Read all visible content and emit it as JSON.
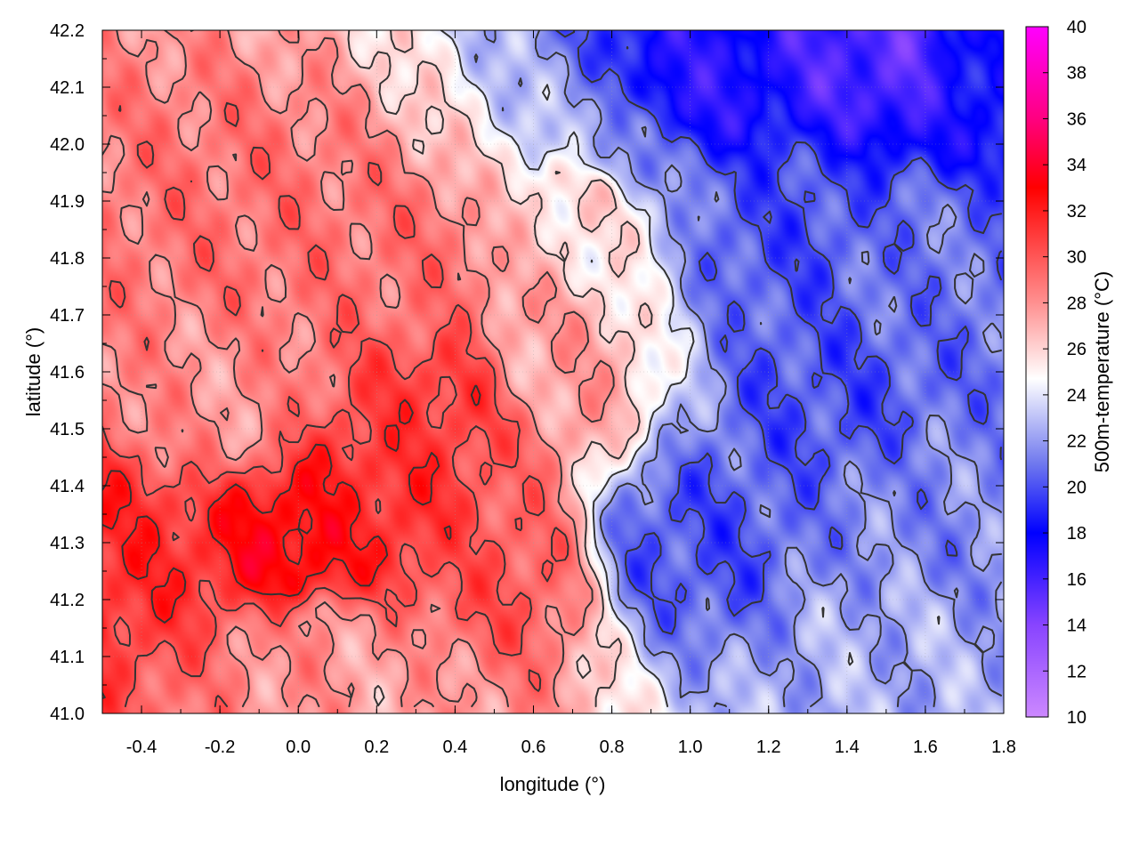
{
  "chart_data": {
    "type": "heatmap",
    "title": "",
    "xlabel": "longitude (°)",
    "ylabel": "latitude (°)",
    "colorbar_label": "500m-temperature (°C)",
    "xlim": [
      -0.5,
      1.8
    ],
    "ylim": [
      41.0,
      42.2
    ],
    "x_ticks": [
      -0.4,
      -0.2,
      0.0,
      0.2,
      0.4,
      0.6,
      0.8,
      1.0,
      1.2,
      1.4,
      1.6,
      1.8
    ],
    "x_tick_labels": [
      "-0.4",
      "-0.2",
      "0.0",
      "0.2",
      "0.4",
      "0.6",
      "0.8",
      "1.0",
      "1.2",
      "1.4",
      "1.6",
      "1.8"
    ],
    "y_ticks": [
      41.0,
      41.1,
      41.2,
      41.3,
      41.4,
      41.5,
      41.6,
      41.7,
      41.8,
      41.9,
      42.0,
      42.1,
      42.2
    ],
    "y_tick_labels": [
      "41.0",
      "41.1",
      "41.2",
      "41.3",
      "41.4",
      "41.5",
      "41.6",
      "41.7",
      "41.8",
      "41.9",
      "42.0",
      "42.1",
      "42.2"
    ],
    "colorbar_range": [
      10,
      40
    ],
    "colorbar_ticks": [
      10,
      12,
      14,
      16,
      18,
      20,
      22,
      24,
      26,
      28,
      30,
      32,
      34,
      36,
      38,
      40
    ],
    "colorbar_tick_labels": [
      "10",
      "12",
      "14",
      "16",
      "18",
      "20",
      "22",
      "24",
      "26",
      "28",
      "30",
      "32",
      "34",
      "36",
      "38",
      "40"
    ],
    "colormap": [
      {
        "value": 10,
        "color": "#cc88ff"
      },
      {
        "value": 14,
        "color": "#8844ff"
      },
      {
        "value": 18,
        "color": "#0000ff"
      },
      {
        "value": 21,
        "color": "#6f78ee"
      },
      {
        "value": 24.7,
        "color": "#ffffff"
      },
      {
        "value": 28,
        "color": "#ff9090"
      },
      {
        "value": 33,
        "color": "#ff0000"
      },
      {
        "value": 36,
        "color": "#ff0080"
      },
      {
        "value": 40,
        "color": "#ff00ff"
      }
    ],
    "grid": true,
    "contour_color": "#333333",
    "hotspots_temperature_c": [
      {
        "lon": -0.5,
        "lat": 41.3,
        "value": 31.5
      },
      {
        "lon": 0.0,
        "lat": 41.3,
        "value": 33
      },
      {
        "lon": 0.2,
        "lat": 41.35,
        "value": 31.5
      },
      {
        "lon": -0.2,
        "lat": 41.55,
        "value": 28
      },
      {
        "lon": 0.4,
        "lat": 41.55,
        "value": 31
      },
      {
        "lon": 0.3,
        "lat": 41.8,
        "value": 29
      },
      {
        "lon": -0.1,
        "lat": 41.85,
        "value": 29
      },
      {
        "lon": 0.5,
        "lat": 41.25,
        "value": 30
      },
      {
        "lon": 0.05,
        "lat": 41.1,
        "value": 28
      },
      {
        "lon": 0.2,
        "lat": 41.05,
        "value": 27.5
      },
      {
        "lon": 0.6,
        "lat": 41.6,
        "value": 27.5
      },
      {
        "lon": 0.7,
        "lat": 41.9,
        "value": 26
      },
      {
        "lon": 1.0,
        "lat": 42.1,
        "value": 17
      },
      {
        "lon": 1.5,
        "lat": 42.15,
        "value": 15.5
      },
      {
        "lon": 1.75,
        "lat": 42.12,
        "value": 18
      },
      {
        "lon": 1.25,
        "lat": 41.85,
        "value": 20
      },
      {
        "lon": 1.35,
        "lat": 41.55,
        "value": 20
      },
      {
        "lon": 1.0,
        "lat": 41.3,
        "value": 20
      },
      {
        "lon": 1.6,
        "lat": 41.35,
        "value": 21.5
      },
      {
        "lon": 1.5,
        "lat": 41.1,
        "value": 22.5
      },
      {
        "lon": 1.6,
        "lat": 41.8,
        "value": 21
      },
      {
        "lon": 0.8,
        "lat": 42.0,
        "value": 22
      }
    ]
  }
}
